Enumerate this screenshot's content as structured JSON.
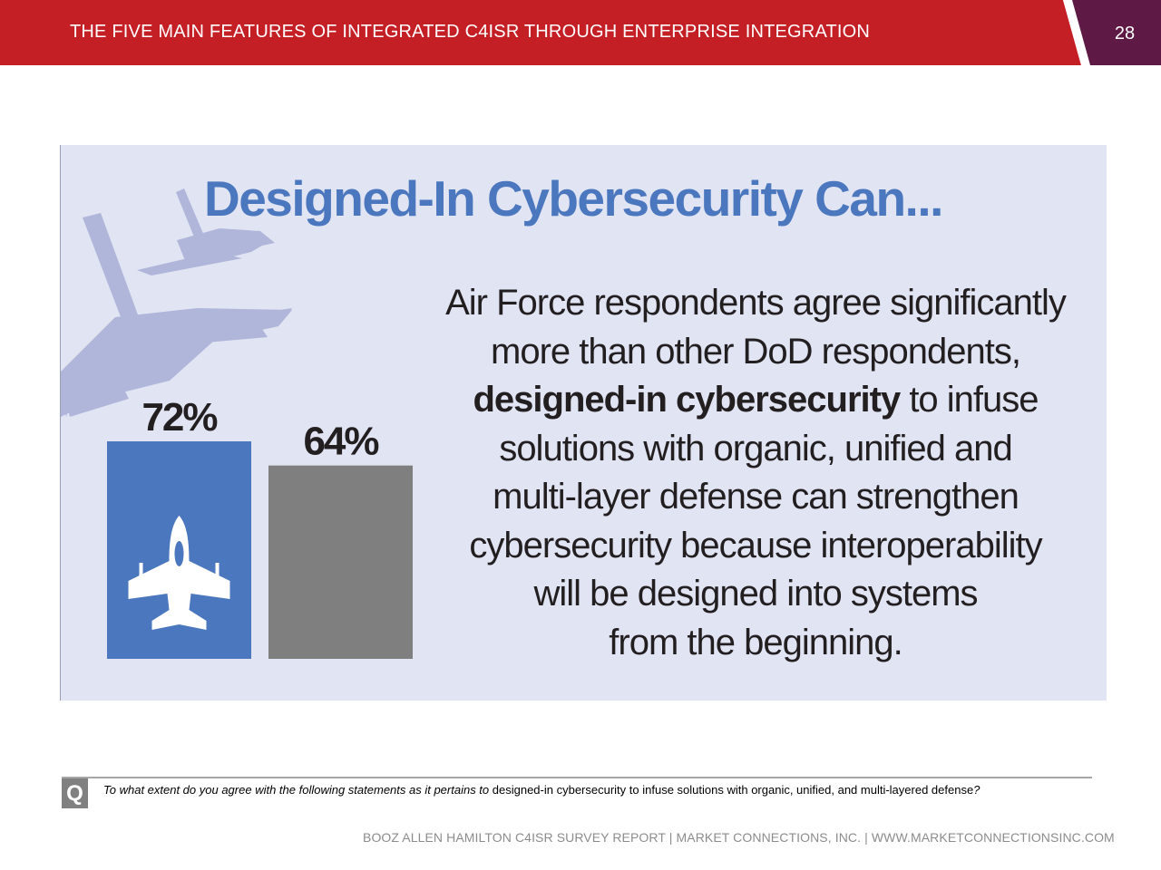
{
  "header": {
    "title": "THE FIVE MAIN FEATURES OF INTEGRATED C4ISR THROUGH ENTERPRISE INTEGRATION",
    "page_number": "28"
  },
  "colors": {
    "header_red": "#c51f26",
    "header_purple": "#5e1a45",
    "panel_bg": "#e1e4f3",
    "title_blue": "#4a77bd",
    "bar_air_force": "#4a77bd",
    "bar_other_dod": "#7f7f80",
    "jet_silhouette": "#b0b6da"
  },
  "infographic": {
    "title": "Designed-In Cybersecurity Can...",
    "body_lines": [
      {
        "text": "Air Force respondents agree significantly",
        "bold": ""
      },
      {
        "text": "more than other DoD respondents,",
        "bold": ""
      },
      {
        "text": " to infuse",
        "bold": "designed-in cybersecurity"
      },
      {
        "text": "solutions with organic, unified and",
        "bold": ""
      },
      {
        "text": "multi-layer defense can strengthen",
        "bold": ""
      },
      {
        "text": "cybersecurity because interoperability",
        "bold": ""
      },
      {
        "text": "will be designed into systems",
        "bold": ""
      },
      {
        "text": "from the beginning.",
        "bold": ""
      }
    ]
  },
  "chart_data": {
    "type": "bar",
    "categories": [
      "Air Force",
      "Other DoD"
    ],
    "values": [
      72,
      64
    ],
    "data_labels": [
      "72%",
      "64%"
    ],
    "icons": [
      "fighter-jet-icon",
      ""
    ],
    "ylim": [
      0,
      100
    ],
    "grid": false,
    "legend": "none"
  },
  "question": {
    "badge": "Q",
    "prompt": "To what extent do you agree with the following statements as it pertains to",
    "topic": " designed-in cybersecurity to infuse solutions with organic, unified, and multi-layered defense",
    "end": "?"
  },
  "footer": {
    "text": "BOOZ ALLEN HAMILTON C4ISR SURVEY REPORT   |   MARKET CONNECTIONS, INC.  |  WWW.MARKETCONNECTIONSINC.COM"
  }
}
